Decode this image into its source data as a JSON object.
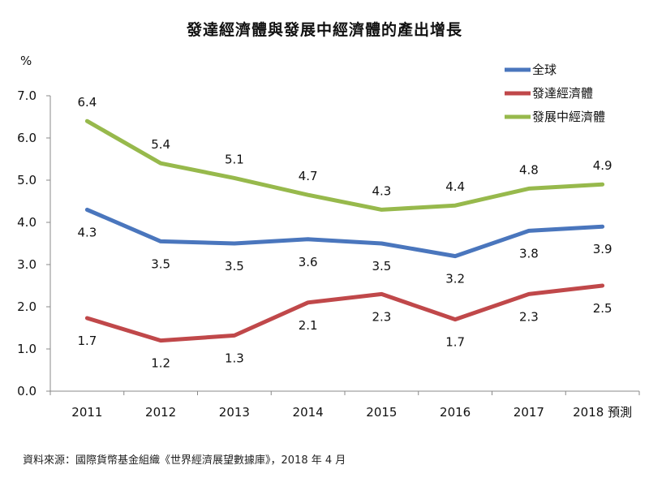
{
  "title": "發達經濟體與發展中經濟體的產出增長",
  "source": "資料來源：國際貨幣基金組織《世界經濟展望數據庫》，2018 年 4 月",
  "chart_data": {
    "type": "line",
    "title": "發達經濟體與發展中經濟體的產出增長",
    "ylabel": "%",
    "xlabel": "",
    "categories": [
      "2011",
      "2012",
      "2013",
      "2014",
      "2015",
      "2016",
      "2017",
      "2018 預測"
    ],
    "ylim": [
      0,
      7
    ],
    "yticks": [
      "0.0",
      "1.0",
      "2.0",
      "3.0",
      "4.0",
      "5.0",
      "6.0",
      "7.0"
    ],
    "grid": false,
    "legend_position": "top-right",
    "series": [
      {
        "name": "全球",
        "color": "#4a76bd",
        "values": [
          4.3,
          3.55,
          3.5,
          3.6,
          3.5,
          3.2,
          3.8,
          3.9
        ],
        "labels": [
          "4.3",
          "3.5",
          "3.5",
          "3.6",
          "3.5",
          "3.2",
          "3.8",
          "3.9"
        ],
        "label_position": "below"
      },
      {
        "name": "發達經濟體",
        "color": "#c0484a",
        "values": [
          1.73,
          1.2,
          1.32,
          2.1,
          2.3,
          1.7,
          2.3,
          2.5
        ],
        "labels": [
          "1.7",
          "1.2",
          "1.3",
          "2.1",
          "2.3",
          "1.7",
          "2.3",
          "2.5"
        ],
        "label_position": "below"
      },
      {
        "name": "發展中經濟體",
        "color": "#97b94c",
        "values": [
          6.4,
          5.4,
          5.05,
          4.65,
          4.3,
          4.4,
          4.8,
          4.9
        ],
        "labels": [
          "6.4",
          "5.4",
          "5.1",
          "4.7",
          "4.3",
          "4.4",
          "4.8",
          "4.9"
        ],
        "label_position": "above"
      }
    ]
  }
}
